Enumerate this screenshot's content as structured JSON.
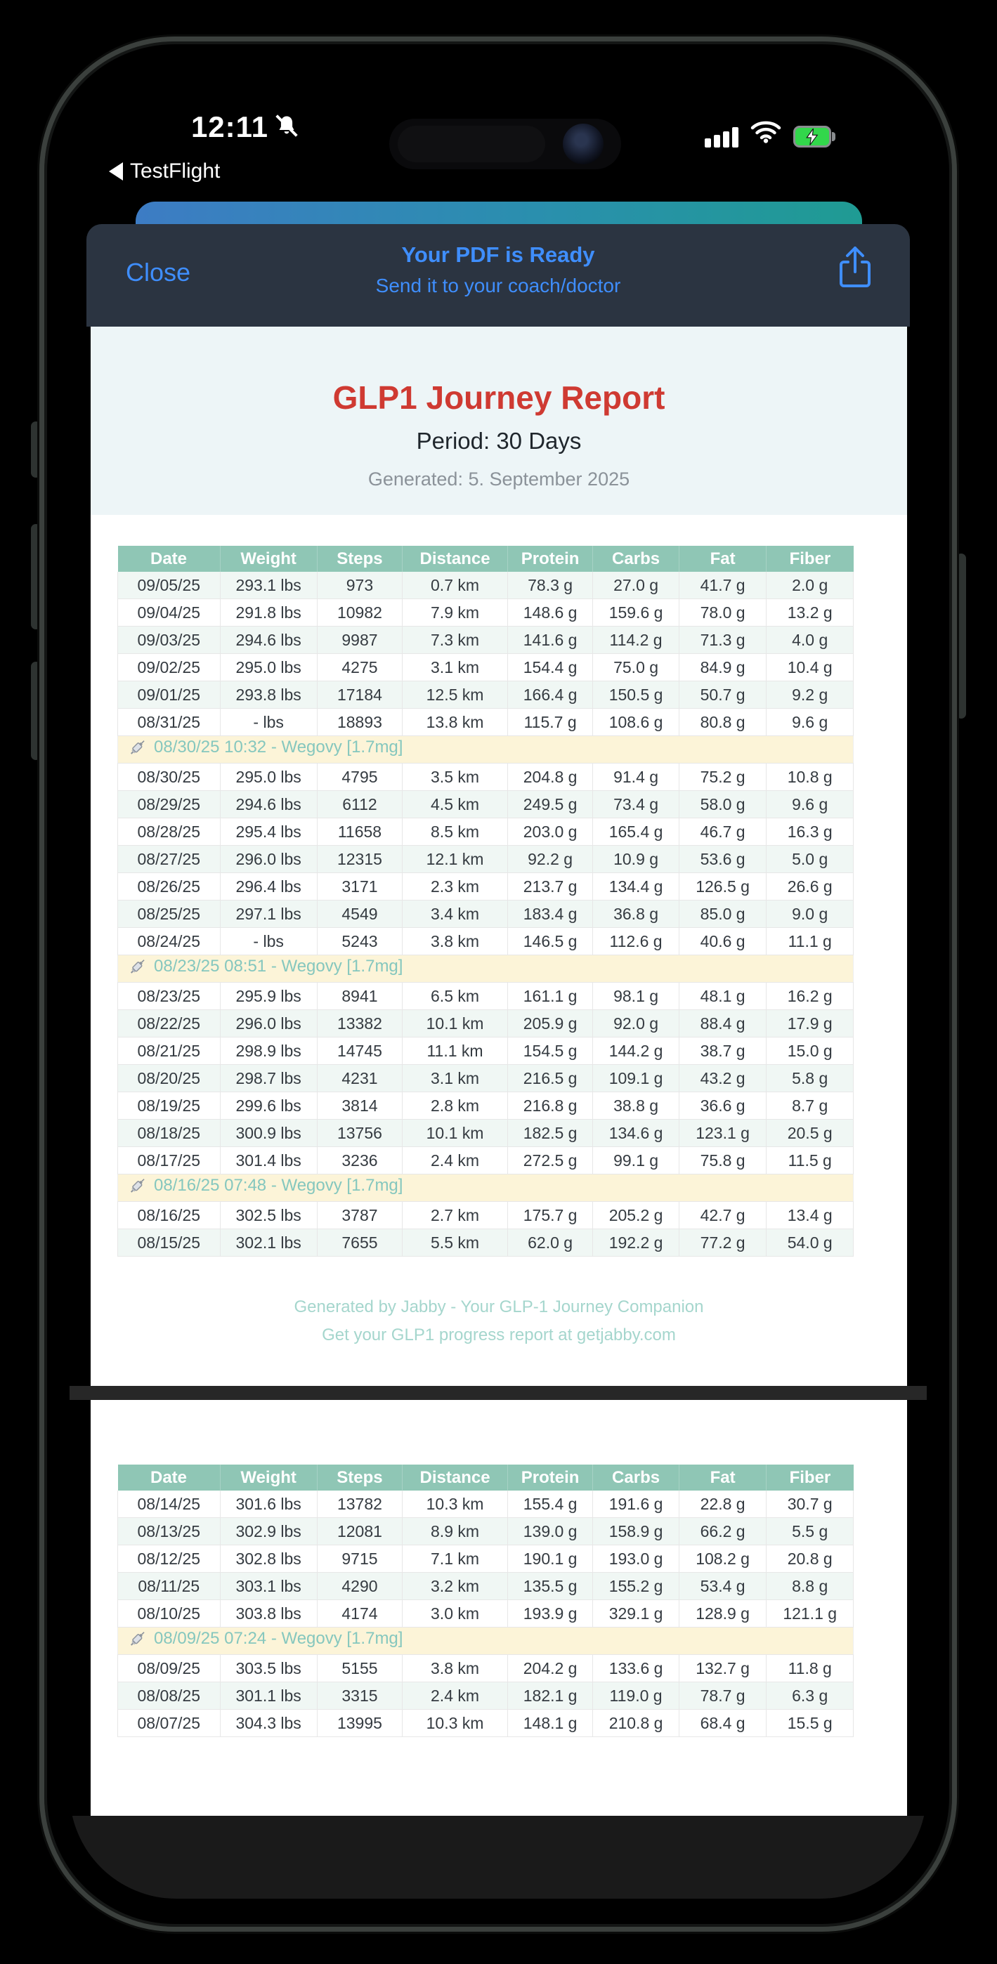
{
  "status_bar": {
    "time": "12:11",
    "back_label": "TestFlight",
    "icons": [
      "back-triangle-icon",
      "mute-bell-icon",
      "cellular-signal-icon",
      "wifi-icon",
      "battery-charging-icon"
    ]
  },
  "modal": {
    "close_label": "Close",
    "title": "Your PDF is Ready",
    "subtitle": "Send it to your coach/doctor",
    "share_icon": "share-icon"
  },
  "report": {
    "title": "GLP1 Journey Report",
    "period": "Period: 30 Days",
    "generated": "Generated: 5. September 2025",
    "footer_line1": "Generated by Jabby - Your GLP-1 Journey Companion",
    "footer_line2": "Get your GLP1 progress report at getjabby.com",
    "columns": [
      "Date",
      "Weight",
      "Steps",
      "Distance",
      "Protein",
      "Carbs",
      "Fat",
      "Fiber"
    ],
    "pages": [
      {
        "rows": [
          {
            "type": "data",
            "cells": [
              "09/05/25",
              "293.1 lbs",
              "973",
              "0.7 km",
              "78.3 g",
              "27.0 g",
              "41.7 g",
              "2.0 g"
            ]
          },
          {
            "type": "data",
            "cells": [
              "09/04/25",
              "291.8 lbs",
              "10982",
              "7.9 km",
              "148.6 g",
              "159.6 g",
              "78.0 g",
              "13.2 g"
            ]
          },
          {
            "type": "data",
            "cells": [
              "09/03/25",
              "294.6 lbs",
              "9987",
              "7.3 km",
              "141.6 g",
              "114.2 g",
              "71.3 g",
              "4.0 g"
            ]
          },
          {
            "type": "data",
            "cells": [
              "09/02/25",
              "295.0 lbs",
              "4275",
              "3.1 km",
              "154.4 g",
              "75.0 g",
              "84.9 g",
              "10.4 g"
            ]
          },
          {
            "type": "data",
            "cells": [
              "09/01/25",
              "293.8 lbs",
              "17184",
              "12.5 km",
              "166.4 g",
              "150.5 g",
              "50.7 g",
              "9.2 g"
            ]
          },
          {
            "type": "data",
            "cells": [
              "08/31/25",
              "- lbs",
              "18893",
              "13.8 km",
              "115.7 g",
              "108.6 g",
              "80.8 g",
              "9.6 g"
            ]
          },
          {
            "type": "injection",
            "text": "08/30/25 10:32 - Wegovy [1.7mg]"
          },
          {
            "type": "data",
            "cells": [
              "08/30/25",
              "295.0 lbs",
              "4795",
              "3.5 km",
              "204.8 g",
              "91.4 g",
              "75.2 g",
              "10.8 g"
            ]
          },
          {
            "type": "data",
            "cells": [
              "08/29/25",
              "294.6 lbs",
              "6112",
              "4.5 km",
              "249.5 g",
              "73.4 g",
              "58.0 g",
              "9.6 g"
            ]
          },
          {
            "type": "data",
            "cells": [
              "08/28/25",
              "295.4 lbs",
              "11658",
              "8.5 km",
              "203.0 g",
              "165.4 g",
              "46.7 g",
              "16.3 g"
            ]
          },
          {
            "type": "data",
            "cells": [
              "08/27/25",
              "296.0 lbs",
              "12315",
              "12.1 km",
              "92.2 g",
              "10.9 g",
              "53.6 g",
              "5.0 g"
            ]
          },
          {
            "type": "data",
            "cells": [
              "08/26/25",
              "296.4 lbs",
              "3171",
              "2.3 km",
              "213.7 g",
              "134.4 g",
              "126.5 g",
              "26.6 g"
            ]
          },
          {
            "type": "data",
            "cells": [
              "08/25/25",
              "297.1 lbs",
              "4549",
              "3.4 km",
              "183.4 g",
              "36.8 g",
              "85.0 g",
              "9.0 g"
            ]
          },
          {
            "type": "data",
            "cells": [
              "08/24/25",
              "- lbs",
              "5243",
              "3.8 km",
              "146.5 g",
              "112.6 g",
              "40.6 g",
              "11.1 g"
            ]
          },
          {
            "type": "injection",
            "text": "08/23/25 08:51 - Wegovy [1.7mg]"
          },
          {
            "type": "data",
            "cells": [
              "08/23/25",
              "295.9 lbs",
              "8941",
              "6.5 km",
              "161.1 g",
              "98.1 g",
              "48.1 g",
              "16.2 g"
            ]
          },
          {
            "type": "data",
            "cells": [
              "08/22/25",
              "296.0 lbs",
              "13382",
              "10.1 km",
              "205.9 g",
              "92.0 g",
              "88.4 g",
              "17.9 g"
            ]
          },
          {
            "type": "data",
            "cells": [
              "08/21/25",
              "298.9 lbs",
              "14745",
              "11.1 km",
              "154.5 g",
              "144.2 g",
              "38.7 g",
              "15.0 g"
            ]
          },
          {
            "type": "data",
            "cells": [
              "08/20/25",
              "298.7 lbs",
              "4231",
              "3.1 km",
              "216.5 g",
              "109.1 g",
              "43.2 g",
              "5.8 g"
            ]
          },
          {
            "type": "data",
            "cells": [
              "08/19/25",
              "299.6 lbs",
              "3814",
              "2.8 km",
              "216.8 g",
              "38.8 g",
              "36.6 g",
              "8.7 g"
            ]
          },
          {
            "type": "data",
            "cells": [
              "08/18/25",
              "300.9 lbs",
              "13756",
              "10.1 km",
              "182.5 g",
              "134.6 g",
              "123.1 g",
              "20.5 g"
            ]
          },
          {
            "type": "data",
            "cells": [
              "08/17/25",
              "301.4 lbs",
              "3236",
              "2.4 km",
              "272.5 g",
              "99.1 g",
              "75.8 g",
              "11.5 g"
            ]
          },
          {
            "type": "injection",
            "text": "08/16/25 07:48 - Wegovy [1.7mg]"
          },
          {
            "type": "data",
            "cells": [
              "08/16/25",
              "302.5 lbs",
              "3787",
              "2.7 km",
              "175.7 g",
              "205.2 g",
              "42.7 g",
              "13.4 g"
            ]
          },
          {
            "type": "data",
            "cells": [
              "08/15/25",
              "302.1 lbs",
              "7655",
              "5.5 km",
              "62.0 g",
              "192.2 g",
              "77.2 g",
              "54.0 g"
            ]
          }
        ]
      },
      {
        "rows": [
          {
            "type": "data",
            "cells": [
              "08/14/25",
              "301.6 lbs",
              "13782",
              "10.3 km",
              "155.4 g",
              "191.6 g",
              "22.8 g",
              "30.7 g"
            ]
          },
          {
            "type": "data",
            "cells": [
              "08/13/25",
              "302.9 lbs",
              "12081",
              "8.9 km",
              "139.0 g",
              "158.9 g",
              "66.2 g",
              "5.5 g"
            ]
          },
          {
            "type": "data",
            "cells": [
              "08/12/25",
              "302.8 lbs",
              "9715",
              "7.1 km",
              "190.1 g",
              "193.0 g",
              "108.2 g",
              "20.8 g"
            ]
          },
          {
            "type": "data",
            "cells": [
              "08/11/25",
              "303.1 lbs",
              "4290",
              "3.2 km",
              "135.5 g",
              "155.2 g",
              "53.4 g",
              "8.8 g"
            ]
          },
          {
            "type": "data",
            "cells": [
              "08/10/25",
              "303.8 lbs",
              "4174",
              "3.0 km",
              "193.9 g",
              "329.1 g",
              "128.9 g",
              "121.1 g"
            ]
          },
          {
            "type": "injection",
            "text": "08/09/25 07:24 - Wegovy [1.7mg]"
          },
          {
            "type": "data",
            "cells": [
              "08/09/25",
              "303.5 lbs",
              "5155",
              "3.8 km",
              "204.2 g",
              "133.6 g",
              "132.7 g",
              "11.8 g"
            ]
          },
          {
            "type": "data",
            "cells": [
              "08/08/25",
              "301.1 lbs",
              "3315",
              "2.4 km",
              "182.1 g",
              "119.0 g",
              "78.7 g",
              "6.3 g"
            ]
          },
          {
            "type": "data",
            "cells": [
              "08/07/25",
              "304.3 lbs",
              "13995",
              "10.3 km",
              "148.1 g",
              "210.8 g",
              "68.4 g",
              "15.5 g"
            ]
          }
        ]
      }
    ]
  },
  "colors": {
    "accent_blue": "#3f8efd",
    "title_red": "#cf3a32",
    "table_header_teal": "#8fc6b5",
    "row_tint": "#f0f7f4",
    "injection_bg": "#fcf4d8",
    "injection_text": "#85c7be",
    "footer_teal": "#a5d6cd",
    "modal_bg": "#2b3441",
    "gradient_left": "#3d7cc4",
    "gradient_right": "#1f9b93",
    "battery_green": "#32d74b"
  }
}
